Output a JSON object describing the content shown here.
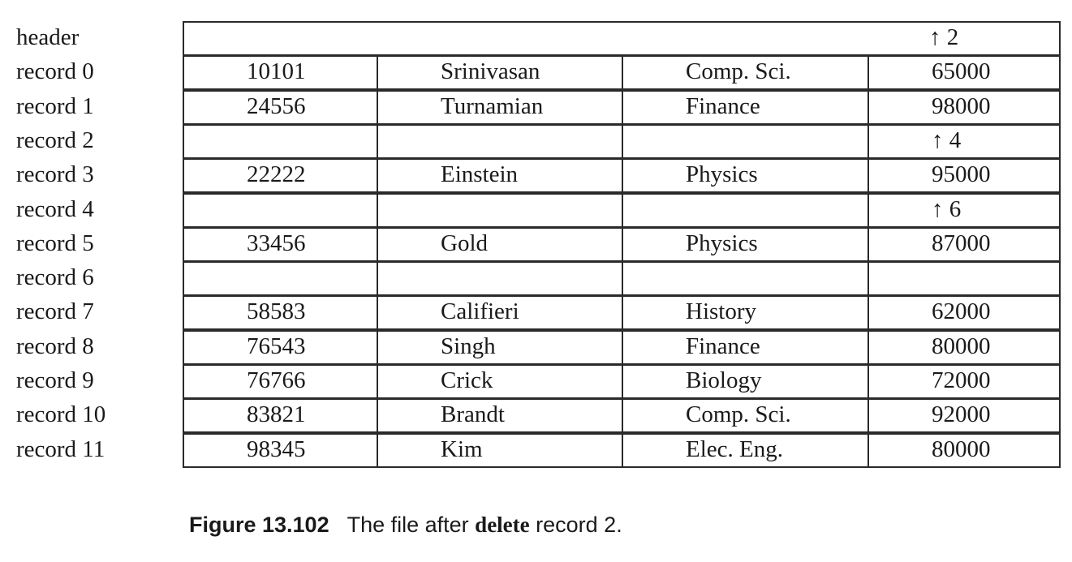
{
  "header": {
    "label": "header",
    "pointer": "↑ 2"
  },
  "records": [
    {
      "label": "record 0",
      "cells": [
        "10101",
        "Srinivasan",
        "Comp. Sci.",
        "65000"
      ]
    },
    {
      "label": "record 1",
      "cells": [
        "24556",
        "Turnamian",
        "Finance",
        "98000"
      ]
    },
    {
      "label": "record 2",
      "cells": [
        "",
        "",
        "",
        "↑ 4"
      ]
    },
    {
      "label": "record 3",
      "cells": [
        "22222",
        "Einstein",
        "Physics",
        "95000"
      ]
    },
    {
      "label": "record 4",
      "cells": [
        "",
        "",
        "",
        "↑ 6"
      ]
    },
    {
      "label": "record 5",
      "cells": [
        "33456",
        "Gold",
        "Physics",
        "87000"
      ]
    },
    {
      "label": "record 6",
      "cells": [
        "",
        "",
        "",
        ""
      ]
    },
    {
      "label": "record 7",
      "cells": [
        "58583",
        "Califieri",
        "History",
        "62000"
      ]
    },
    {
      "label": "record 8",
      "cells": [
        "76543",
        "Singh",
        "Finance",
        "80000"
      ]
    },
    {
      "label": "record 9",
      "cells": [
        "76766",
        "Crick",
        "Biology",
        "72000"
      ]
    },
    {
      "label": "record 10",
      "cells": [
        "83821",
        "Brandt",
        "Comp. Sci.",
        "92000"
      ]
    },
    {
      "label": "record 11",
      "cells": [
        "98345",
        "Kim",
        "Elec. Eng.",
        "80000"
      ]
    }
  ],
  "caption": {
    "figure": "Figure 13.102",
    "text_before": "The file after ",
    "keyword": "delete",
    "text_after": " record 2."
  }
}
